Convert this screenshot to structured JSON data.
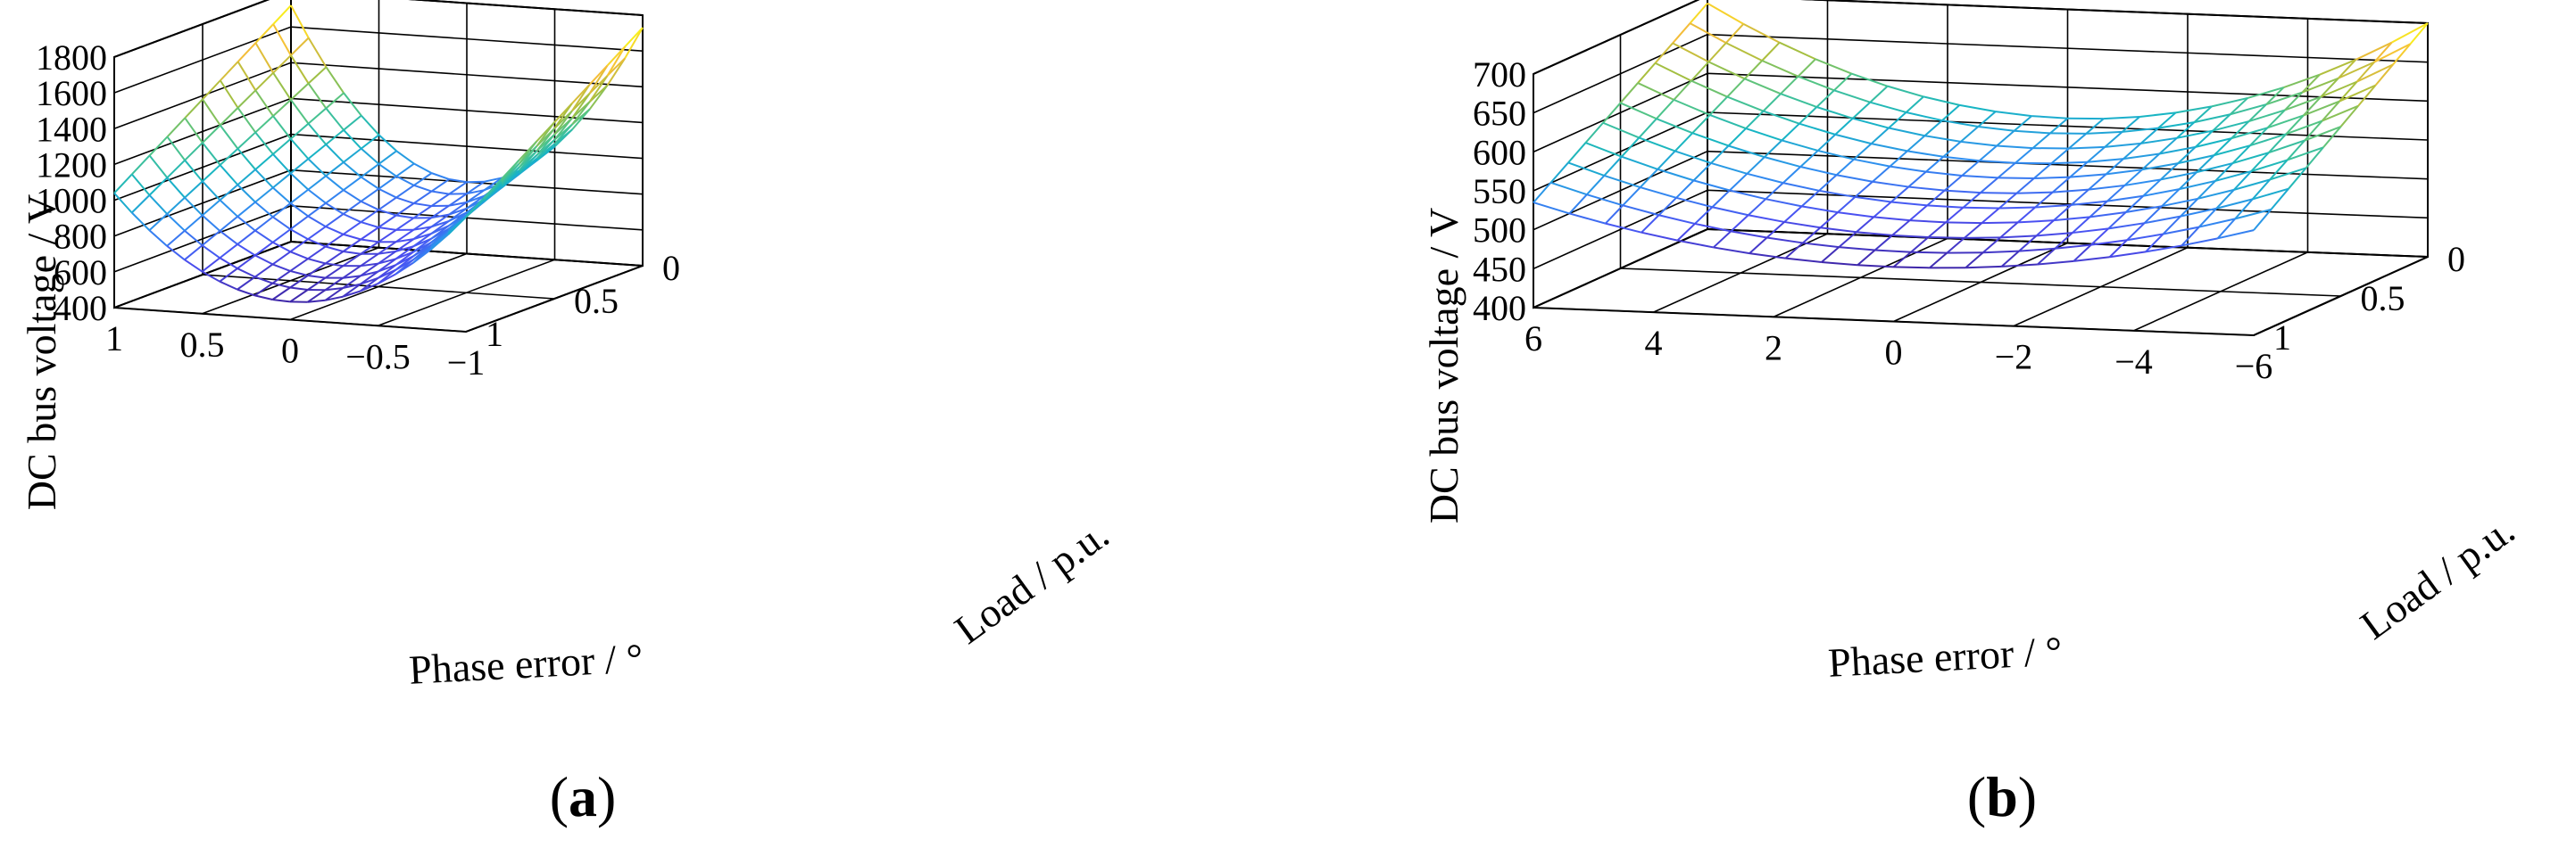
{
  "chart_data": [
    {
      "type": "surface",
      "panel_label": "(a)",
      "panel_letter": "a",
      "xlabel": "Phase error / °",
      "ylabel": "Load / p.u.",
      "zlabel": "DC bus voltage / V",
      "x_ticks": [
        "1",
        "0.5",
        "0",
        "−0.5",
        "−1"
      ],
      "x_tick_values": [
        1,
        0.5,
        0,
        -0.5,
        -1
      ],
      "y_ticks": [
        "0",
        "0.5",
        "1"
      ],
      "y_tick_values": [
        0,
        0.5,
        1
      ],
      "z_ticks": [
        "400",
        "600",
        "800",
        "1000",
        "1200",
        "1400",
        "1600",
        "1800"
      ],
      "z_tick_values": [
        400,
        600,
        800,
        1000,
        1200,
        1400,
        1600,
        1800
      ],
      "xlim": [
        -1,
        1
      ],
      "ylim": [
        0,
        1
      ],
      "zlim": [
        400,
        1800
      ],
      "grid": true,
      "colormap": [
        "#3e26a8",
        "#4a50f2",
        "#2f8ef0",
        "#17b5c4",
        "#4dc48a",
        "#a7bf3e",
        "#f5bd39",
        "#f9fb15"
      ],
      "surface_model": {
        "formula": "z = base + curvature * x^2",
        "base_at_load_1": 500,
        "base_at_load_0": 800,
        "edge_at_load_1_x_plus_1": 1040,
        "edge_at_load_0_x_plus_1": 1720,
        "edge_at_load_0_x_minus_1": 1730
      }
    },
    {
      "type": "surface",
      "panel_label": "(b)",
      "panel_letter": "b",
      "xlabel": "Phase error / °",
      "ylabel": "Load / p.u.",
      "zlabel": "DC bus voltage / V",
      "x_ticks": [
        "6",
        "4",
        "2",
        "0",
        "−2",
        "−4",
        "−6"
      ],
      "x_tick_values": [
        6,
        4,
        2,
        0,
        -2,
        -4,
        -6
      ],
      "y_ticks": [
        "0",
        "0.5",
        "1"
      ],
      "y_tick_values": [
        0,
        0.5,
        1
      ],
      "z_ticks": [
        "400",
        "450",
        "500",
        "550",
        "600",
        "650",
        "700"
      ],
      "z_tick_values": [
        400,
        450,
        500,
        550,
        600,
        650,
        700
      ],
      "xlim": [
        -6,
        6
      ],
      "ylim": [
        0,
        1
      ],
      "zlim": [
        400,
        700
      ],
      "grid": true,
      "colormap": [
        "#3e26a8",
        "#4a50f2",
        "#2f8ef0",
        "#17b5c4",
        "#4dc48a",
        "#a7bf3e",
        "#f5bd39",
        "#f9fb15"
      ],
      "surface_model": {
        "formula": "z = base + curvature * x^2",
        "base_at_load_1": 470,
        "base_at_load_0": 560,
        "edge_at_load_1_x_plus_6": 535,
        "edge_at_load_0_x_plus_6": 690,
        "edge_at_load_0_x_minus_6": 700
      }
    }
  ]
}
